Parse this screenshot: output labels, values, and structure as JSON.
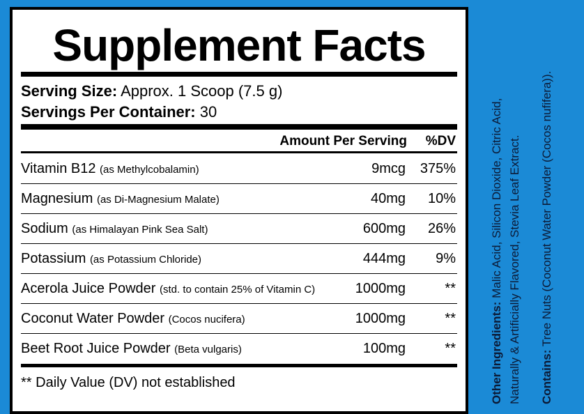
{
  "header": {
    "title": "Supplement Facts"
  },
  "serving": {
    "size_label": "Serving Size:",
    "size_value": "Approx. 1 Scoop (7.5 g)",
    "per_container_label": "Servings Per Container:",
    "per_container_value": "30"
  },
  "table": {
    "columns": [
      "Amount Per Serving",
      "%DV"
    ],
    "rows": [
      [
        "Vitamin B12",
        "(as Methylcobalamin)",
        "9mcg",
        "375%"
      ],
      [
        "Magnesium",
        "(as Di-Magnesium Malate)",
        "40mg",
        "10%"
      ],
      [
        "Sodium",
        "(as Himalayan Pink Sea Salt)",
        "600mg",
        "26%"
      ],
      [
        "Potassium",
        "(as Potassium Chloride)",
        "444mg",
        "9%"
      ],
      [
        "Acerola Juice Powder",
        "(std. to contain 25% of Vitamin C)",
        "1000mg",
        "**"
      ],
      [
        "Coconut Water Powder",
        "(Cocos nucifera)",
        "1000mg",
        "**"
      ],
      [
        "Beet Root Juice Powder",
        "(Beta vulgaris)",
        "100mg",
        "**"
      ]
    ]
  },
  "footnote": "** Daily Value (DV) not established",
  "side": {
    "other_label": "Other Ingredients:",
    "other_lines": [
      "Malic Acid, Silicon Dioxide, Citric Acid,",
      "Naturally & Artificially Flavored, Stevia Leaf Extract."
    ],
    "contains_label": "Contains:",
    "contains_value": "Tree Nuts (Coconut Water Powder (Cocos nufifera))."
  }
}
